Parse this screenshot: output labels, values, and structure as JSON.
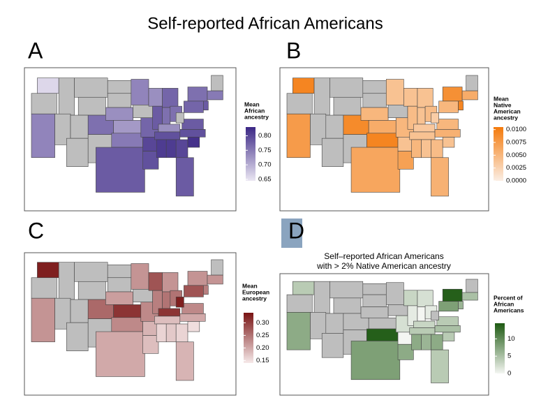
{
  "title": "Self-reported African Americans",
  "chart_data": [
    {
      "type": "choropleth",
      "panel": "A",
      "legend_title": [
        "Mean",
        "African",
        "ancestry"
      ],
      "low_color": "#ebe7f3",
      "high_color": "#3b2785",
      "na_color": "#bebebe",
      "lim": [
        0.645,
        0.83
      ],
      "ticks": [
        0.65,
        {
          "value": 0.7,
          "label": "0.70"
        },
        0.75,
        {
          "value": 0.8,
          "label": "0.80"
        }
      ],
      "values": [
        0.66,
        null,
        0.74,
        null,
        null,
        null,
        null,
        null,
        null,
        0.76,
        null,
        null,
        null,
        0.73,
        0.72,
        0.75,
        0.78,
        0.74,
        null,
        0.77,
        0.8,
        0.79,
        0.73,
        0.78,
        0.77,
        0.76,
        0.76,
        0.73,
        0.79,
        0.81,
        0.81,
        0.8,
        0.78,
        0.82,
        0.79,
        0.78,
        null,
        0.77,
        0.76,
        0.78,
        null,
        0.75
      ]
    },
    {
      "type": "choropleth",
      "panel": "B",
      "legend_title": [
        "Mean",
        "Native",
        "American",
        "ancestry"
      ],
      "low_color": "#fbeee4",
      "high_color": "#f47a0c",
      "na_color": "#bebebe",
      "lim": [
        0,
        0.0105
      ],
      "ticks": [
        {
          "value": 0,
          "label": "0.0000"
        },
        {
          "value": 0.0025,
          "label": "0.0025"
        },
        {
          "value": 0.005,
          "label": "0.0050"
        },
        {
          "value": 0.0075,
          "label": "0.0075"
        },
        {
          "value": 0.01,
          "label": "0.0100"
        }
      ],
      "values": [
        0.0095,
        null,
        0.0075,
        null,
        null,
        null,
        null,
        null,
        null,
        0.009,
        null,
        null,
        null,
        0.005,
        0.006,
        0.0095,
        0.0065,
        0.004,
        null,
        0.005,
        0.004,
        0.007,
        0.004,
        0.0045,
        0.004,
        0.004,
        0.0045,
        0.0035,
        0.004,
        0.005,
        0.004,
        0.0045,
        0.0055,
        0.004,
        0.0055,
        0.005,
        0.003,
        0.005,
        0.0085,
        0.0095,
        null,
        0.006
      ]
    },
    {
      "type": "choropleth",
      "panel": "C",
      "legend_title": [
        "Mean",
        "European",
        "ancestry"
      ],
      "low_color": "#f6e9e9",
      "high_color": "#791414",
      "na_color": "#bebebe",
      "lim": [
        0.14,
        0.34
      ],
      "ticks": [
        0.15,
        {
          "value": 0.2,
          "label": "0.20"
        },
        0.25,
        {
          "value": 0.3,
          "label": "0.30"
        }
      ],
      "values": [
        0.33,
        null,
        0.22,
        null,
        null,
        null,
        null,
        null,
        null,
        0.26,
        null,
        null,
        null,
        0.21,
        0.31,
        0.23,
        0.2,
        0.22,
        null,
        0.23,
        0.19,
        0.18,
        0.28,
        0.24,
        0.22,
        0.25,
        0.25,
        0.31,
        0.18,
        0.16,
        0.17,
        0.16,
        0.19,
        0.15,
        0.2,
        0.23,
        0.33,
        0.28,
        0.22,
        0.24,
        null,
        0.22
      ]
    },
    {
      "type": "choropleth",
      "panel": "D",
      "subtitle": [
        "Self–reported African Americans",
        "with > 2% Native American ancestry"
      ],
      "legend_title": [
        "Percent of",
        "African",
        "Americans"
      ],
      "low_color": "#f4f6f2",
      "high_color": "#1e5a12",
      "na_color": "#bebebe",
      "lim": [
        0,
        14.5
      ],
      "ticks": [
        0,
        5,
        10
      ],
      "values": [
        4,
        null,
        7,
        null,
        null,
        null,
        null,
        null,
        null,
        null,
        null,
        null,
        null,
        null,
        null,
        14,
        8,
        null,
        null,
        2,
        0,
        7,
        3,
        1,
        2,
        0,
        1,
        3,
        4,
        7,
        6,
        7,
        4,
        4,
        5,
        4,
        null,
        8,
        14,
        6,
        null,
        5
      ]
    }
  ]
}
